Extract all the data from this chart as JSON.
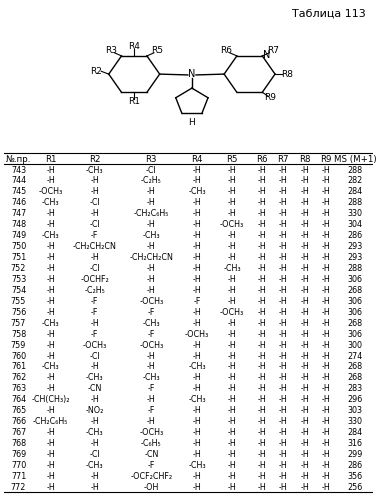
{
  "title": "Таблица 113",
  "columns": [
    "№.пр.",
    "R1",
    "R2",
    "R3",
    "R4",
    "R5",
    "R6",
    "R7",
    "R8",
    "R9",
    "MS (M+1)"
  ],
  "rows": [
    [
      "743",
      "-H",
      "-CH₃",
      "-Cl",
      "-H",
      "-H",
      "-H",
      "-H",
      "-H",
      "-H",
      "288"
    ],
    [
      "744",
      "-H",
      "-H",
      "-C₂H₅",
      "-H",
      "-H",
      "-H",
      "-H",
      "-H",
      "-H",
      "282"
    ],
    [
      "745",
      "-OCH₃",
      "-H",
      "-H",
      "-CH₃",
      "-H",
      "-H",
      "-H",
      "-H",
      "-H",
      "284"
    ],
    [
      "746",
      "-CH₃",
      "-Cl",
      "-H",
      "-H",
      "-H",
      "-H",
      "-H",
      "-H",
      "-H",
      "288"
    ],
    [
      "747",
      "-H",
      "-H",
      "-CH₂C₆H₅",
      "-H",
      "-H",
      "-H",
      "-H",
      "-H",
      "-H",
      "330"
    ],
    [
      "748",
      "-H",
      "-Cl",
      "-H",
      "-H",
      "-OCH₃",
      "-H",
      "-H",
      "-H",
      "-H",
      "304"
    ],
    [
      "749",
      "-CH₃",
      "-F",
      "-CH₃",
      "-H",
      "-H",
      "-H",
      "-H",
      "-H",
      "-H",
      "286"
    ],
    [
      "750",
      "-H",
      "-CH₂CH₂CN",
      "-H",
      "-H",
      "-H",
      "-H",
      "-H",
      "-H",
      "-H",
      "293"
    ],
    [
      "751",
      "-H",
      "-H",
      "-CH₂CH₂CN",
      "-H",
      "-H",
      "-H",
      "-H",
      "-H",
      "-H",
      "293"
    ],
    [
      "752",
      "-H",
      "-Cl",
      "-H",
      "-H",
      "-CH₃",
      "-H",
      "-H",
      "-H",
      "-H",
      "288"
    ],
    [
      "753",
      "-H",
      "-OCHF₂",
      "-H",
      "-H",
      "-H",
      "-H",
      "-H",
      "-H",
      "-H",
      "306"
    ],
    [
      "754",
      "-H",
      "-C₂H₅",
      "-H",
      "-H",
      "-H",
      "-H",
      "-H",
      "-H",
      "-H",
      "268"
    ],
    [
      "755",
      "-H",
      "-F",
      "-OCH₃",
      "-F",
      "-H",
      "-H",
      "-H",
      "-H",
      "-H",
      "306"
    ],
    [
      "756",
      "-H",
      "-F",
      "-F",
      "-H",
      "-OCH₃",
      "-H",
      "-H",
      "-H",
      "-H",
      "306"
    ],
    [
      "757",
      "-CH₃",
      "-H",
      "-CH₃",
      "-H",
      "-H",
      "-H",
      "-H",
      "-H",
      "-H",
      "268"
    ],
    [
      "758",
      "-H",
      "-F",
      "-F",
      "-OCH₃",
      "-H",
      "-H",
      "-H",
      "-H",
      "-H",
      "306"
    ],
    [
      "759",
      "-H",
      "-OCH₃",
      "-OCH₃",
      "-H",
      "-H",
      "-H",
      "-H",
      "-H",
      "-H",
      "300"
    ],
    [
      "760",
      "-H",
      "-Cl",
      "-H",
      "-H",
      "-H",
      "-H",
      "-H",
      "-H",
      "-H",
      "274"
    ],
    [
      "761",
      "-CH₃",
      "-H",
      "-H",
      "-CH₃",
      "-H",
      "-H",
      "-H",
      "-H",
      "-H",
      "268"
    ],
    [
      "762",
      "-H",
      "-CH₃",
      "-CH₃",
      "-H",
      "-H",
      "-H",
      "-H",
      "-H",
      "-H",
      "268"
    ],
    [
      "763",
      "-H",
      "-CN",
      "-F",
      "-H",
      "-H",
      "-H",
      "-H",
      "-H",
      "-H",
      "283"
    ],
    [
      "764",
      "-CH(CH₃)₂",
      "-H",
      "-H",
      "-CH₃",
      "-H",
      "-H",
      "-H",
      "-H",
      "-H",
      "296"
    ],
    [
      "765",
      "-H",
      "-NO₂",
      "-F",
      "-H",
      "-H",
      "-H",
      "-H",
      "-H",
      "-H",
      "303"
    ],
    [
      "766",
      "-CH₂C₆H₅",
      "-H",
      "-H",
      "-H",
      "-H",
      "-H",
      "-H",
      "-H",
      "-H",
      "330"
    ],
    [
      "767",
      "-H",
      "-CH₃",
      "-OCH₃",
      "-H",
      "-H",
      "-H",
      "-H",
      "-H",
      "-H",
      "284"
    ],
    [
      "768",
      "-H",
      "-H",
      "-C₆H₅",
      "-H",
      "-H",
      "-H",
      "-H",
      "-H",
      "-H",
      "316"
    ],
    [
      "769",
      "-H",
      "-Cl",
      "-CN",
      "-H",
      "-H",
      "-H",
      "-H",
      "-H",
      "-H",
      "299"
    ],
    [
      "770",
      "-H",
      "-CH₃",
      "-F",
      "-CH₃",
      "-H",
      "-H",
      "-H",
      "-H",
      "-H",
      "286"
    ],
    [
      "771",
      "-H",
      "-H",
      "-OCF₂CHF₂",
      "-H",
      "-H",
      "-H",
      "-H",
      "-H",
      "-H",
      "356"
    ],
    [
      "772",
      "-H",
      "-H",
      "-OH",
      "-H",
      "-H",
      "-H",
      "-H",
      "-H",
      "-H",
      "256"
    ]
  ],
  "bg_color": "#ffffff",
  "font_size": 5.8,
  "header_font_size": 6.2,
  "struct_title_fontsize": 8.0
}
